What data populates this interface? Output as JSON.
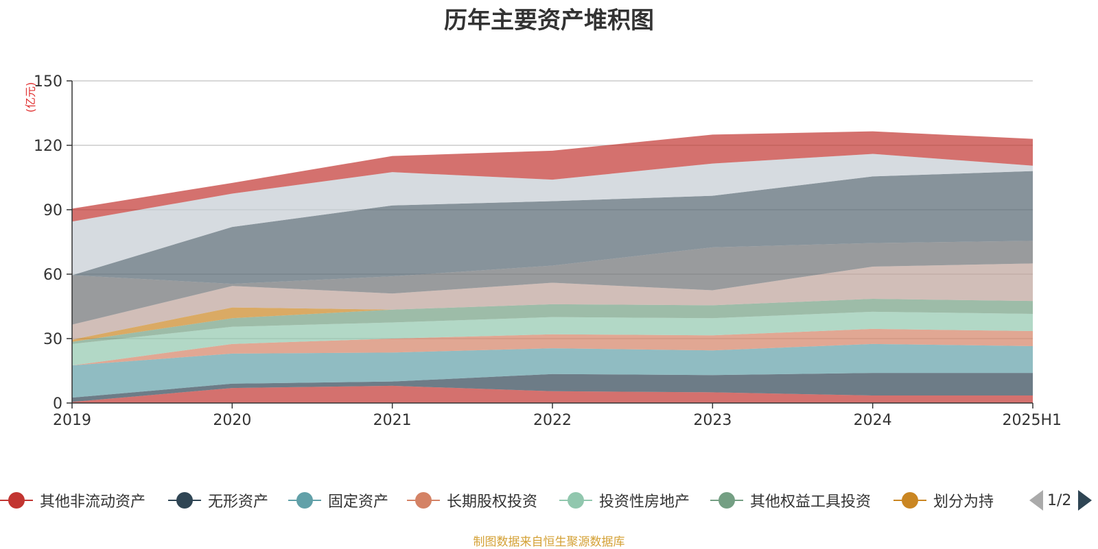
{
  "chart_data": {
    "type": "area",
    "stacked": true,
    "title": "历年主要资产堆积图",
    "ylabel": "(亿元)",
    "ylim": [
      0,
      150
    ],
    "yticks": [
      0,
      30,
      60,
      90,
      120,
      150
    ],
    "categories": [
      "2019",
      "2020",
      "2021",
      "2022",
      "2023",
      "2024",
      "2025H1"
    ],
    "grid": true,
    "legend_position": "bottom",
    "series": [
      {
        "name": "其他非流动资产",
        "color": "#c23531",
        "values": [
          0.5,
          7,
          8,
          5.5,
          5,
          3.5,
          3.5
        ]
      },
      {
        "name": "无形资产",
        "color": "#2f4554",
        "values": [
          2,
          2,
          2,
          8,
          8,
          10.5,
          10.5
        ]
      },
      {
        "name": "固定资产",
        "color": "#61a0a8",
        "values": [
          15,
          14,
          13.5,
          12,
          11.5,
          13.5,
          12.5
        ]
      },
      {
        "name": "长期股权投资",
        "color": "#d48265",
        "values": [
          0,
          4.5,
          6.5,
          6.5,
          7,
          7,
          7
        ]
      },
      {
        "name": "投资性房地产",
        "color": "#91c7ae",
        "values": [
          10,
          8,
          7.5,
          8,
          8,
          8,
          8
        ]
      },
      {
        "name": "其他权益工具投资",
        "color": "#749f83",
        "values": [
          1,
          4,
          6,
          6,
          6,
          6,
          6
        ]
      },
      {
        "name": "划分为持",
        "color": "#ca8622",
        "values": [
          1,
          5,
          0,
          0,
          0,
          0,
          0
        ]
      },
      {
        "color": "#bda29a",
        "values": [
          7,
          10,
          7.5,
          10,
          7,
          15,
          17.5
        ]
      },
      {
        "color": "#6e7074",
        "values": [
          23,
          1,
          8,
          8,
          20,
          11,
          10.5
        ]
      },
      {
        "color": "#546570",
        "values": [
          0,
          26.5,
          33,
          30,
          24,
          31,
          32.5
        ]
      },
      {
        "color": "#c4ccd3",
        "values": [
          25,
          15.5,
          15.5,
          10,
          15,
          10.5,
          2.5
        ]
      },
      {
        "color": "#c23531",
        "values": [
          6,
          5,
          7.5,
          13.5,
          13.5,
          10.5,
          12.5
        ]
      }
    ],
    "source_note": "制图数据来自恒生聚源数据库"
  },
  "legend": {
    "items": [
      {
        "label": "其他非流动资产",
        "color": "#c23531"
      },
      {
        "label": "无形资产",
        "color": "#2f4554"
      },
      {
        "label": "固定资产",
        "color": "#61a0a8"
      },
      {
        "label": "长期股权投资",
        "color": "#d48265"
      },
      {
        "label": "投资性房地产",
        "color": "#91c7ae"
      },
      {
        "label": "其他权益工具投资",
        "color": "#749f83"
      },
      {
        "label": "划分为持",
        "color": "#ca8622"
      }
    ],
    "pager": "1/2"
  }
}
